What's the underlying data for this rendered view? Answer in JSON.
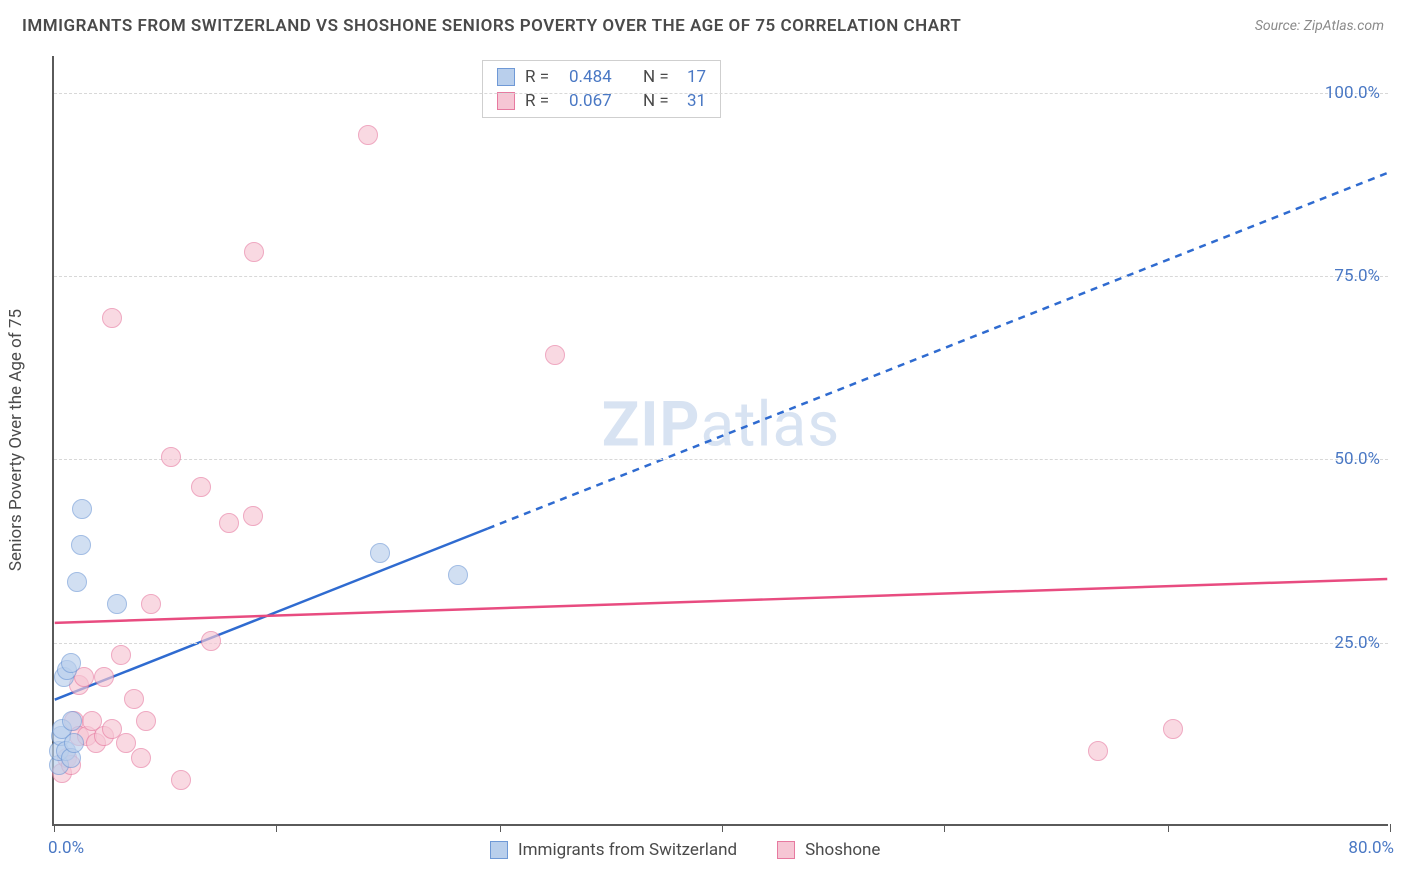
{
  "title": "IMMIGRANTS FROM SWITZERLAND VS SHOSHONE SENIORS POVERTY OVER THE AGE OF 75 CORRELATION CHART",
  "source": "Source: ZipAtlas.com",
  "watermark_bold": "ZIP",
  "watermark_rest": "atlas",
  "yaxis_title": "Seniors Poverty Over the Age of 75",
  "chart": {
    "type": "scatter",
    "background_color": "#ffffff",
    "grid_color": "#d8d8d8",
    "axis_color": "#5a5a5a",
    "tick_label_color": "#4a78c4",
    "tick_fontsize": 17,
    "title_fontsize": 17,
    "xlim": [
      0,
      80
    ],
    "ylim": [
      0,
      105
    ],
    "x_min_label": "0.0%",
    "x_max_label": "80.0%",
    "xtick_positions": [
      0,
      13.3,
      26.7,
      40,
      53.3,
      66.7,
      80
    ],
    "yticks": [
      {
        "v": 25,
        "label": "25.0%"
      },
      {
        "v": 50,
        "label": "50.0%"
      },
      {
        "v": 75,
        "label": "75.0%"
      },
      {
        "v": 100,
        "label": "100.0%"
      }
    ],
    "series": [
      {
        "name": "Immigrants from Switzerland",
        "marker_radius": 10,
        "fill": "#b9cfec",
        "stroke": "#6f99d6",
        "fill_opacity": 0.65,
        "correlation_R": "0.484",
        "correlation_N": "17",
        "trend": {
          "x1": 0,
          "y1": 17,
          "x2": 80,
          "y2": 89,
          "solid_until_x": 26,
          "color": "#2f6bd0",
          "width": 2.5,
          "dash": "7,6"
        },
        "points": [
          {
            "x": 0.3,
            "y": 8
          },
          {
            "x": 0.3,
            "y": 10
          },
          {
            "x": 0.4,
            "y": 12
          },
          {
            "x": 0.5,
            "y": 13
          },
          {
            "x": 0.7,
            "y": 10
          },
          {
            "x": 0.6,
            "y": 20
          },
          {
            "x": 0.8,
            "y": 21
          },
          {
            "x": 1.0,
            "y": 22
          },
          {
            "x": 1.0,
            "y": 9
          },
          {
            "x": 1.2,
            "y": 11
          },
          {
            "x": 1.4,
            "y": 33
          },
          {
            "x": 1.6,
            "y": 38
          },
          {
            "x": 1.7,
            "y": 43
          },
          {
            "x": 3.8,
            "y": 30
          },
          {
            "x": 19.5,
            "y": 37
          },
          {
            "x": 24.2,
            "y": 34
          },
          {
            "x": 1.1,
            "y": 14
          }
        ]
      },
      {
        "name": "Shoshone",
        "marker_radius": 10,
        "fill": "#f6c6d4",
        "stroke": "#e77aa0",
        "fill_opacity": 0.65,
        "correlation_R": "0.067",
        "correlation_N": "31",
        "trend": {
          "x1": 0,
          "y1": 27.5,
          "x2": 80,
          "y2": 33.5,
          "solid_until_x": 80,
          "color": "#e84c80",
          "width": 2.5,
          "dash": ""
        },
        "points": [
          {
            "x": 0.5,
            "y": 7
          },
          {
            "x": 0.8,
            "y": 9
          },
          {
            "x": 1.0,
            "y": 8
          },
          {
            "x": 1.2,
            "y": 14
          },
          {
            "x": 1.5,
            "y": 12
          },
          {
            "x": 1.5,
            "y": 19
          },
          {
            "x": 1.8,
            "y": 20
          },
          {
            "x": 2.0,
            "y": 12
          },
          {
            "x": 2.3,
            "y": 14
          },
          {
            "x": 2.5,
            "y": 11
          },
          {
            "x": 3.0,
            "y": 12
          },
          {
            "x": 3.0,
            "y": 20
          },
          {
            "x": 3.5,
            "y": 13
          },
          {
            "x": 3.5,
            "y": 69
          },
          {
            "x": 4.0,
            "y": 23
          },
          {
            "x": 4.3,
            "y": 11
          },
          {
            "x": 4.8,
            "y": 17
          },
          {
            "x": 5.2,
            "y": 9
          },
          {
            "x": 5.5,
            "y": 14
          },
          {
            "x": 5.8,
            "y": 30
          },
          {
            "x": 7.0,
            "y": 50
          },
          {
            "x": 7.6,
            "y": 6
          },
          {
            "x": 8.8,
            "y": 46
          },
          {
            "x": 9.4,
            "y": 25
          },
          {
            "x": 10.5,
            "y": 41
          },
          {
            "x": 11.9,
            "y": 42
          },
          {
            "x": 12.0,
            "y": 78
          },
          {
            "x": 18.8,
            "y": 94
          },
          {
            "x": 30.0,
            "y": 64
          },
          {
            "x": 62.5,
            "y": 10
          },
          {
            "x": 67.0,
            "y": 13
          }
        ]
      }
    ],
    "legend_top": {
      "R_label": "R =",
      "N_label": "N ="
    },
    "legend_bottom": true
  }
}
